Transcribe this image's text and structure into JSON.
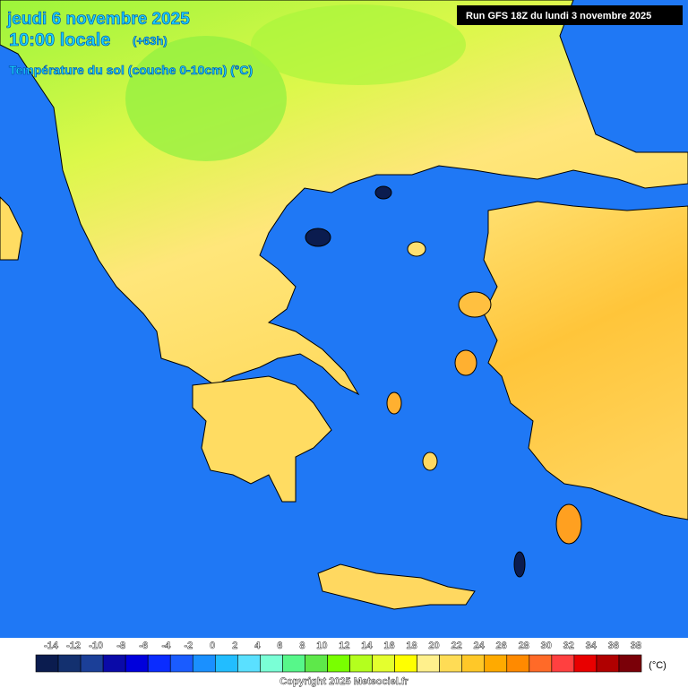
{
  "header": {
    "date": "jeudi 6 novembre 2025",
    "time": "10:00 locale",
    "lead": "(+63h)",
    "parameter": "Température du sol (couche 0-10cm) (°C)",
    "run": "Run GFS 18Z du lundi 3 novembre 2025"
  },
  "legend": {
    "ticks": [
      -14,
      -12,
      -10,
      -8,
      -6,
      -4,
      -2,
      0,
      2,
      4,
      6,
      8,
      10,
      12,
      14,
      16,
      18,
      20,
      22,
      24,
      26,
      28,
      30,
      32,
      34,
      36,
      38
    ],
    "colors": [
      "#0b1c4f",
      "#13306f",
      "#1b3f98",
      "#0a0aa8",
      "#0000dc",
      "#0a2cff",
      "#1a5cff",
      "#1a90ff",
      "#22bdff",
      "#5ae0ff",
      "#7affd6",
      "#57f78a",
      "#5ee84a",
      "#79ff00",
      "#b4ff1e",
      "#e4ff2e",
      "#ffff00",
      "#fff08c",
      "#ffdc55",
      "#ffc828",
      "#ffaa00",
      "#ff8a00",
      "#ff6a28",
      "#ff4040",
      "#e80000",
      "#b00000",
      "#7a0008"
    ],
    "unit": "(°C)"
  },
  "footer": {
    "copyright": "Copyright 2025 Meteociel.fr"
  }
}
